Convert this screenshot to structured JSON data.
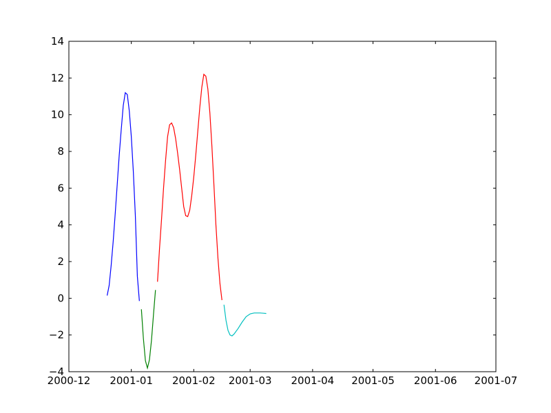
{
  "chart_data": {
    "type": "line",
    "title": "",
    "xlabel": "",
    "ylabel": "",
    "grid": false,
    "legend": "none",
    "x_unit": "date",
    "xlim": [
      "2000-12-01",
      "2001-07-01"
    ],
    "ylim": [
      -4,
      14
    ],
    "xticks": [
      {
        "date": "2000-12-01",
        "label": "2000-12"
      },
      {
        "date": "2001-01-01",
        "label": "2001-01"
      },
      {
        "date": "2001-02-01",
        "label": "2001-02"
      },
      {
        "date": "2001-03-01",
        "label": "2001-03"
      },
      {
        "date": "2001-04-01",
        "label": "2001-04"
      },
      {
        "date": "2001-05-01",
        "label": "2001-05"
      },
      {
        "date": "2001-06-01",
        "label": "2001-06"
      },
      {
        "date": "2001-07-01",
        "label": "2001-07"
      }
    ],
    "yticks": [
      {
        "value": -4,
        "label": "−4"
      },
      {
        "value": -2,
        "label": "−2"
      },
      {
        "value": 0,
        "label": "0"
      },
      {
        "value": 2,
        "label": "2"
      },
      {
        "value": 4,
        "label": "4"
      },
      {
        "value": 6,
        "label": "6"
      },
      {
        "value": 8,
        "label": "8"
      },
      {
        "value": 10,
        "label": "10"
      },
      {
        "value": 12,
        "label": "12"
      },
      {
        "value": 14,
        "label": "14"
      }
    ],
    "series": [
      {
        "color": "#0000ff",
        "points": [
          [
            "2000-12-20",
            0.15
          ],
          [
            "2000-12-21",
            0.7
          ],
          [
            "2000-12-22",
            1.8
          ],
          [
            "2000-12-23",
            3.1
          ],
          [
            "2000-12-24",
            4.6
          ],
          [
            "2000-12-25",
            6.2
          ],
          [
            "2000-12-26",
            7.8
          ],
          [
            "2000-12-27",
            9.2
          ],
          [
            "2000-12-28",
            10.5
          ],
          [
            "2000-12-29",
            11.2
          ],
          [
            "2000-12-30",
            11.1
          ],
          [
            "2000-12-31",
            10.2
          ],
          [
            "2001-01-01",
            8.8
          ],
          [
            "2001-01-02",
            6.9
          ],
          [
            "2001-01-03",
            4.5
          ],
          [
            "2001-01-04",
            1.2
          ],
          [
            "2001-01-05",
            -0.15
          ]
        ]
      },
      {
        "color": "#008000",
        "points": [
          [
            "2001-01-06",
            -0.6
          ],
          [
            "2001-01-07",
            -2.2
          ],
          [
            "2001-01-08",
            -3.4
          ],
          [
            "2001-01-09",
            -3.8
          ],
          [
            "2001-01-10",
            -3.35
          ],
          [
            "2001-01-11",
            -2.3
          ],
          [
            "2001-01-12",
            -0.9
          ],
          [
            "2001-01-13",
            0.45
          ]
        ]
      },
      {
        "color": "#ff0000",
        "points": [
          [
            "2001-01-14",
            0.9
          ],
          [
            "2001-01-15",
            2.7
          ],
          [
            "2001-01-16",
            4.3
          ],
          [
            "2001-01-17",
            6.0
          ],
          [
            "2001-01-18",
            7.5
          ],
          [
            "2001-01-19",
            8.8
          ],
          [
            "2001-01-20",
            9.45
          ],
          [
            "2001-01-21",
            9.55
          ],
          [
            "2001-01-22",
            9.3
          ],
          [
            "2001-01-23",
            8.7
          ],
          [
            "2001-01-24",
            7.9
          ],
          [
            "2001-01-25",
            7.0
          ],
          [
            "2001-01-26",
            6.0
          ],
          [
            "2001-01-27",
            5.0
          ],
          [
            "2001-01-28",
            4.5
          ],
          [
            "2001-01-29",
            4.45
          ],
          [
            "2001-01-30",
            4.8
          ],
          [
            "2001-01-31",
            5.6
          ],
          [
            "2001-02-01",
            6.6
          ],
          [
            "2001-02-02",
            7.8
          ],
          [
            "2001-02-03",
            9.1
          ],
          [
            "2001-02-04",
            10.4
          ],
          [
            "2001-02-05",
            11.5
          ],
          [
            "2001-02-06",
            12.2
          ],
          [
            "2001-02-07",
            12.1
          ],
          [
            "2001-02-08",
            11.4
          ],
          [
            "2001-02-09",
            10.1
          ],
          [
            "2001-02-10",
            8.3
          ],
          [
            "2001-02-11",
            6.2
          ],
          [
            "2001-02-12",
            4.0
          ],
          [
            "2001-02-13",
            2.2
          ],
          [
            "2001-02-14",
            0.8
          ],
          [
            "2001-02-15",
            -0.1
          ]
        ]
      },
      {
        "color": "#00bfbf",
        "points": [
          [
            "2001-02-16",
            -0.35
          ],
          [
            "2001-02-17",
            -1.2
          ],
          [
            "2001-02-18",
            -1.75
          ],
          [
            "2001-02-19",
            -2.0
          ],
          [
            "2001-02-20",
            -2.05
          ],
          [
            "2001-02-21",
            -1.95
          ],
          [
            "2001-02-23",
            -1.65
          ],
          [
            "2001-02-25",
            -1.3
          ],
          [
            "2001-02-27",
            -1.0
          ],
          [
            "2001-03-01",
            -0.85
          ],
          [
            "2001-03-03",
            -0.8
          ],
          [
            "2001-03-06",
            -0.8
          ],
          [
            "2001-03-09",
            -0.83
          ]
        ]
      }
    ]
  }
}
